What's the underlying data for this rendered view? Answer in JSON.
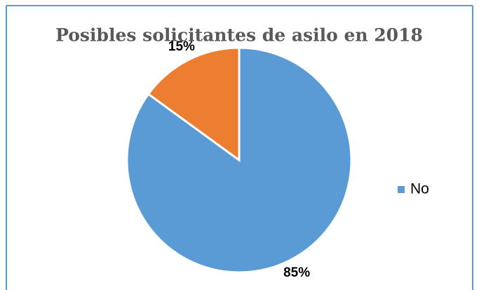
{
  "chart_data": {
    "type": "pie",
    "title": "Posibles solicitantes de asilo en 2018",
    "categories": [
      "No",
      null
    ],
    "values": [
      85,
      15
    ],
    "value_labels": [
      "85%",
      "15%"
    ],
    "colors": [
      "#5b9bd5",
      "#ed7d31"
    ],
    "legend": "right"
  }
}
